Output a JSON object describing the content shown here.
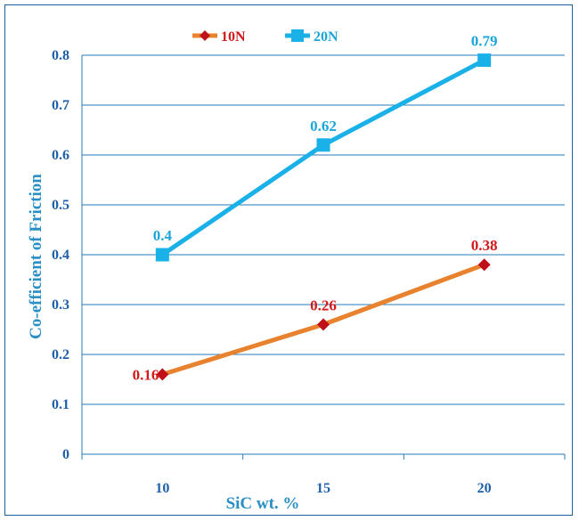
{
  "chart_data": {
    "type": "line",
    "title": "",
    "xlabel": "SiC wt. %",
    "ylabel": "Co-efficient of Friction",
    "categories": [
      "10",
      "15",
      "20"
    ],
    "ylim": [
      0,
      0.8
    ],
    "yticks": [
      "0",
      "0.1",
      "0.2",
      "0.3",
      "0.4",
      "0.5",
      "0.6",
      "0.7",
      "0.8"
    ],
    "grid": "horizontal",
    "legend_position": "top",
    "series": [
      {
        "name": "10N",
        "values": [
          0.16,
          0.26,
          0.38
        ],
        "labels": [
          "0.16",
          "0.26",
          "0.38"
        ],
        "color": "#e8822e",
        "marker": "diamond",
        "marker_color": "#c0101a",
        "label_color": "#d11a1a"
      },
      {
        "name": "20N",
        "values": [
          0.4,
          0.62,
          0.79
        ],
        "labels": [
          "0.4",
          "0.62",
          "0.79"
        ],
        "color": "#1ab0e8",
        "marker": "square",
        "marker_color": "#1ab0e8",
        "label_color": "#1aa6da"
      }
    ]
  }
}
